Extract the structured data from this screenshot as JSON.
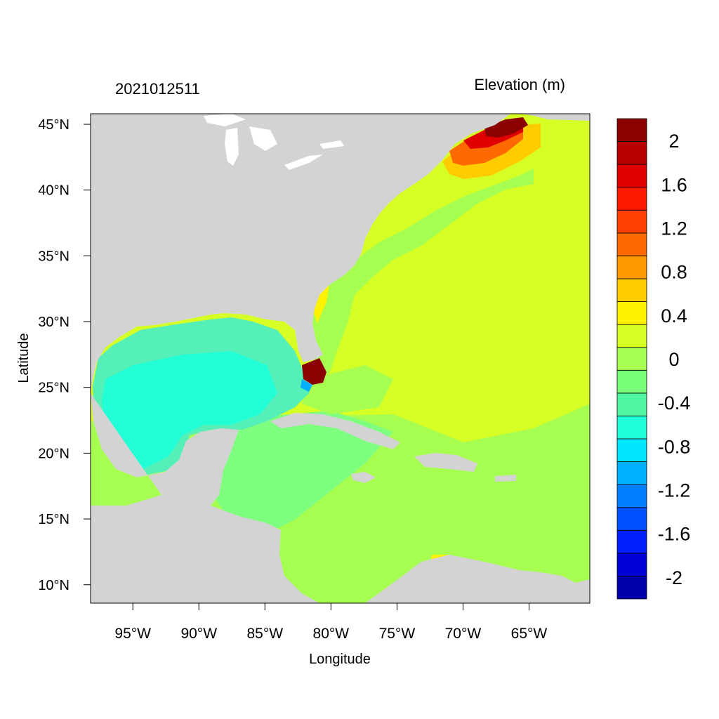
{
  "header": {
    "timestamp": "2021012511",
    "field_label": "Elevation (m)"
  },
  "axes": {
    "x_title": "Longitude",
    "y_title": "Latitude",
    "lon_range": [
      -98.2,
      -60.4
    ],
    "lat_range": [
      8.6,
      45.8
    ],
    "lon_ticks": [
      {
        "value": -95,
        "label": "95°W"
      },
      {
        "value": -90,
        "label": "90°W"
      },
      {
        "value": -85,
        "label": "85°W"
      },
      {
        "value": -80,
        "label": "80°W"
      },
      {
        "value": -75,
        "label": "75°W"
      },
      {
        "value": -70,
        "label": "70°W"
      },
      {
        "value": -65,
        "label": "65°W"
      }
    ],
    "lat_ticks": [
      {
        "value": 45,
        "label": "45°N"
      },
      {
        "value": 40,
        "label": "40°N"
      },
      {
        "value": 35,
        "label": "35°N"
      },
      {
        "value": 30,
        "label": "30°N"
      },
      {
        "value": 25,
        "label": "25°N"
      },
      {
        "value": 20,
        "label": "20°N"
      },
      {
        "value": 15,
        "label": "15°N"
      },
      {
        "value": 10,
        "label": "10°N"
      }
    ]
  },
  "colorbar": {
    "colors": [
      "#0000aa",
      "#0000d6",
      "#0020ff",
      "#0050ff",
      "#0080ff",
      "#00b0ff",
      "#00e6ff",
      "#20ffd8",
      "#50f5a0",
      "#7aff7a",
      "#a6ff50",
      "#d6ff26",
      "#fff200",
      "#ffcc00",
      "#ff9a00",
      "#ff6a00",
      "#ff4000",
      "#ff1800",
      "#e00000",
      "#b80000",
      "#8b0000"
    ],
    "labels": [
      {
        "value": 2,
        "label": "2"
      },
      {
        "value": 1.6,
        "label": "1.6"
      },
      {
        "value": 1.2,
        "label": "1.2"
      },
      {
        "value": 0.8,
        "label": "0.8"
      },
      {
        "value": 0.4,
        "label": "0.4"
      },
      {
        "value": 0,
        "label": "0"
      },
      {
        "value": -0.4,
        "label": "-0.4"
      },
      {
        "value": -0.8,
        "label": "-0.8"
      },
      {
        "value": -1.2,
        "label": "-1.2"
      },
      {
        "value": -1.6,
        "label": "-1.6"
      },
      {
        "value": -2,
        "label": "-2"
      }
    ]
  },
  "map_colors": {
    "land": "#d3d3d3",
    "gulf": "#55f0b8",
    "gulf_deep": "#22ffd6",
    "caribbean": "#7fff80",
    "atlantic_shelf": "#a6ff50",
    "atlantic_open": "#d6ff26",
    "positive_warm": "#fff200",
    "surge_orange": "#ff6a00",
    "surge_red": "#e00000",
    "surge_dark": "#8b0000",
    "negative_blue": "#00b0ff"
  }
}
